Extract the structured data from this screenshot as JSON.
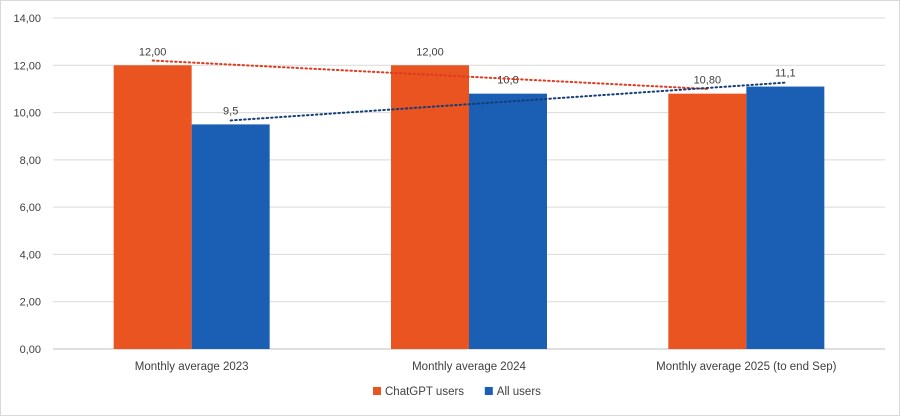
{
  "chart_data": {
    "type": "bar",
    "title": "",
    "xlabel": "",
    "ylabel": "",
    "categories": [
      "Monthly average 2023",
      "Monthly average 2024",
      "Monthly average 2025 (to end Sep)"
    ],
    "series": [
      {
        "name": "ChatGPT users",
        "values": [
          12.0,
          12.0,
          10.8
        ],
        "labels": [
          "12,00",
          "12,00",
          "10,80"
        ],
        "color": "#e95420"
      },
      {
        "name": "All users",
        "values": [
          9.5,
          10.8,
          11.1
        ],
        "labels": [
          "9,5",
          "10,8",
          "11,1"
        ],
        "color": "#1a5fb4"
      }
    ],
    "trendlines": [
      {
        "series": "ChatGPT users",
        "style": "dotted",
        "color": "#e03a1e"
      },
      {
        "series": "All users",
        "style": "dotted",
        "color": "#143d7a"
      }
    ],
    "ylim": [
      0,
      14
    ],
    "yticks": [
      0,
      2,
      4,
      6,
      8,
      10,
      12,
      14
    ],
    "ytick_labels": [
      "0,00",
      "2,00",
      "4,00",
      "6,00",
      "8,00",
      "10,00",
      "12,00",
      "14,00"
    ],
    "grid": true,
    "legend_position": "bottom"
  }
}
